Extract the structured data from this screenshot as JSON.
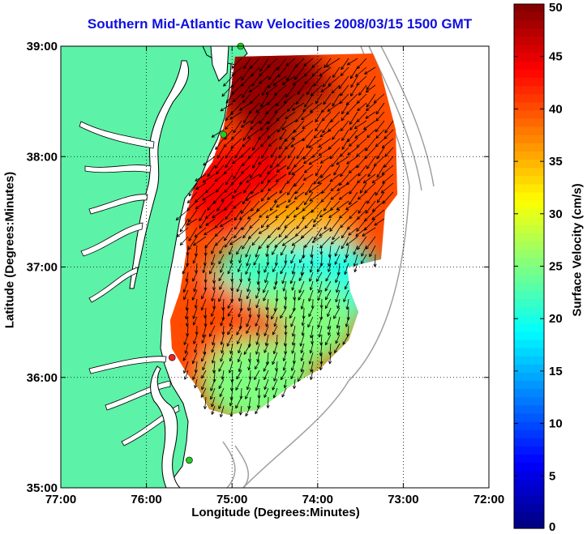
{
  "map": {
    "title": "Southern Mid-Atlantic Raw Velocities 2008/03/15 1500 GMT",
    "xlabel": "Longitude (Degrees:Minutes)",
    "ylabel": "Latitude (Degrees:Minutes)",
    "x_ticks": [
      "77:00",
      "76:00",
      "75:00",
      "74:00",
      "73:00",
      "72:00"
    ],
    "y_ticks": [
      "39:00",
      "38:00",
      "37:00",
      "36:00",
      "35:00"
    ],
    "lon_range": [
      -77,
      -72
    ],
    "lat_range": [
      35,
      39
    ],
    "grid": true,
    "land_color": "#5cf2a8",
    "coast_color": "#000000",
    "bathymetry_color": "#a0a0a0",
    "vector_color": "#000000"
  },
  "colorbar": {
    "label": "Surface Velocity (cm/s)",
    "ticks": [
      "50",
      "45",
      "40",
      "35",
      "30",
      "25",
      "20",
      "15",
      "10",
      "5",
      "0"
    ],
    "range": [
      0,
      50
    ],
    "colormap": "jet"
  },
  "stations": [
    {
      "lon": -74.9,
      "lat": 39.0,
      "color": "#22cc22"
    },
    {
      "lon": -75.1,
      "lat": 38.2,
      "color": "#22cc22"
    },
    {
      "lon": -75.7,
      "lat": 36.18,
      "color": "#ee2222"
    },
    {
      "lon": -75.5,
      "lat": 35.25,
      "color": "#22cc22"
    }
  ],
  "chart_data": {
    "type": "heatmap",
    "title": "Southern Mid-Atlantic Raw Velocities 2008/03/15 1500 GMT",
    "xlabel": "Longitude (Degrees:Minutes)",
    "ylabel": "Latitude (Degrees:Minutes)",
    "colorbar_label": "Surface Velocity (cm/s)",
    "value_range": [
      0,
      50
    ],
    "xlim": [
      -77,
      -72
    ],
    "ylim": [
      35,
      39
    ],
    "regions": [
      {
        "lon": -74.2,
        "lat": 38.3,
        "speed": 48
      },
      {
        "lon": -74.6,
        "lat": 38.7,
        "speed": 49
      },
      {
        "lon": -73.7,
        "lat": 38.1,
        "speed": 40
      },
      {
        "lon": -74.9,
        "lat": 37.7,
        "speed": 44
      },
      {
        "lon": -74.2,
        "lat": 37.2,
        "speed": 35
      },
      {
        "lon": -74.6,
        "lat": 36.85,
        "speed": 22
      },
      {
        "lon": -73.9,
        "lat": 36.85,
        "speed": 20
      },
      {
        "lon": -74.2,
        "lat": 36.5,
        "speed": 25
      },
      {
        "lon": -75.0,
        "lat": 36.3,
        "speed": 44
      },
      {
        "lon": -75.4,
        "lat": 36.5,
        "speed": 40
      },
      {
        "lon": -74.7,
        "lat": 35.95,
        "speed": 25
      }
    ]
  }
}
